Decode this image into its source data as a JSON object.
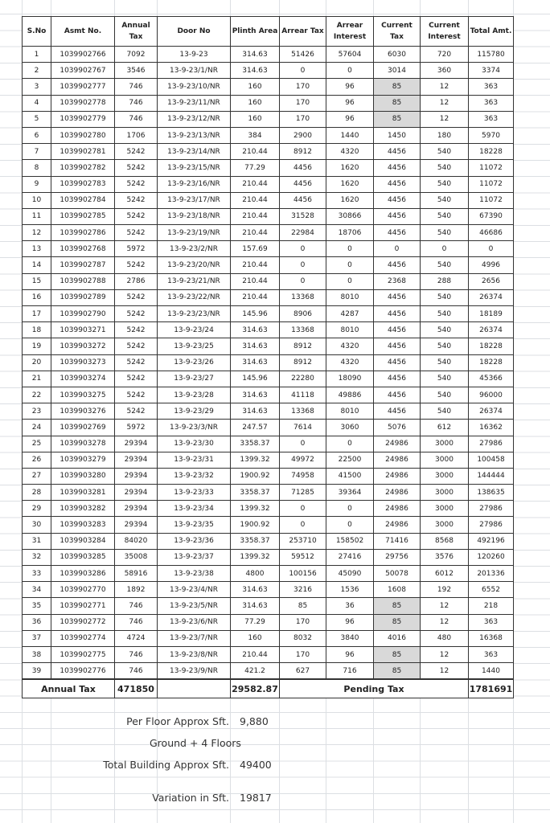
{
  "columns": [
    "S.No",
    "Asmt No.",
    "Annual Tax",
    "Door No",
    "Plinth Area",
    "Arrear Tax",
    "Arrear Interest",
    "Current Tax",
    "Current Interest",
    "Total Amt."
  ],
  "rows": [
    [
      "1",
      "1039902766",
      "7092",
      "13-9-23",
      "314.63",
      "51426",
      "57604",
      "6030",
      "720",
      "115780"
    ],
    [
      "2",
      "1039902767",
      "3546",
      "13-9-23/1/NR",
      "314.63",
      "0",
      "0",
      "3014",
      "360",
      "3374"
    ],
    [
      "3",
      "1039902777",
      "746",
      "13-9-23/10/NR",
      "160",
      "170",
      "96",
      "85",
      "12",
      "363"
    ],
    [
      "4",
      "1039902778",
      "746",
      "13-9-23/11/NR",
      "160",
      "170",
      "96",
      "85",
      "12",
      "363"
    ],
    [
      "5",
      "1039902779",
      "746",
      "13-9-23/12/NR",
      "160",
      "170",
      "96",
      "85",
      "12",
      "363"
    ],
    [
      "6",
      "1039902780",
      "1706",
      "13-9-23/13/NR",
      "384",
      "2900",
      "1440",
      "1450",
      "180",
      "5970"
    ],
    [
      "7",
      "1039902781",
      "5242",
      "13-9-23/14/NR",
      "210.44",
      "8912",
      "4320",
      "4456",
      "540",
      "18228"
    ],
    [
      "8",
      "1039902782",
      "5242",
      "13-9-23/15/NR",
      "77.29",
      "4456",
      "1620",
      "4456",
      "540",
      "11072"
    ],
    [
      "9",
      "1039902783",
      "5242",
      "13-9-23/16/NR",
      "210.44",
      "4456",
      "1620",
      "4456",
      "540",
      "11072"
    ],
    [
      "10",
      "1039902784",
      "5242",
      "13-9-23/17/NR",
      "210.44",
      "4456",
      "1620",
      "4456",
      "540",
      "11072"
    ],
    [
      "11",
      "1039902785",
      "5242",
      "13-9-23/18/NR",
      "210.44",
      "31528",
      "30866",
      "4456",
      "540",
      "67390"
    ],
    [
      "12",
      "1039902786",
      "5242",
      "13-9-23/19/NR",
      "210.44",
      "22984",
      "18706",
      "4456",
      "540",
      "46686"
    ],
    [
      "13",
      "1039902768",
      "5972",
      "13-9-23/2/NR",
      "157.69",
      "0",
      "0",
      "0",
      "0",
      "0"
    ],
    [
      "14",
      "1039902787",
      "5242",
      "13-9-23/20/NR",
      "210.44",
      "0",
      "0",
      "4456",
      "540",
      "4996"
    ],
    [
      "15",
      "1039902788",
      "2786",
      "13-9-23/21/NR",
      "210.44",
      "0",
      "0",
      "2368",
      "288",
      "2656"
    ],
    [
      "16",
      "1039902789",
      "5242",
      "13-9-23/22/NR",
      "210.44",
      "13368",
      "8010",
      "4456",
      "540",
      "26374"
    ],
    [
      "17",
      "1039902790",
      "5242",
      "13-9-23/23/NR",
      "145.96",
      "8906",
      "4287",
      "4456",
      "540",
      "18189"
    ],
    [
      "18",
      "1039903271",
      "5242",
      "13-9-23/24",
      "314.63",
      "13368",
      "8010",
      "4456",
      "540",
      "26374"
    ],
    [
      "19",
      "1039903272",
      "5242",
      "13-9-23/25",
      "314.63",
      "8912",
      "4320",
      "4456",
      "540",
      "18228"
    ],
    [
      "20",
      "1039903273",
      "5242",
      "13-9-23/26",
      "314.63",
      "8912",
      "4320",
      "4456",
      "540",
      "18228"
    ],
    [
      "21",
      "1039903274",
      "5242",
      "13-9-23/27",
      "145.96",
      "22280",
      "18090",
      "4456",
      "540",
      "45366"
    ],
    [
      "22",
      "1039903275",
      "5242",
      "13-9-23/28",
      "314.63",
      "41118",
      "49886",
      "4456",
      "540",
      "96000"
    ],
    [
      "23",
      "1039903276",
      "5242",
      "13-9-23/29",
      "314.63",
      "13368",
      "8010",
      "4456",
      "540",
      "26374"
    ],
    [
      "24",
      "1039902769",
      "5972",
      "13-9-23/3/NR",
      "247.57",
      "7614",
      "3060",
      "5076",
      "612",
      "16362"
    ],
    [
      "25",
      "1039903278",
      "29394",
      "13-9-23/30",
      "3358.37",
      "0",
      "0",
      "24986",
      "3000",
      "27986"
    ],
    [
      "26",
      "1039903279",
      "29394",
      "13-9-23/31",
      "1399.32",
      "49972",
      "22500",
      "24986",
      "3000",
      "100458"
    ],
    [
      "27",
      "1039903280",
      "29394",
      "13-9-23/32",
      "1900.92",
      "74958",
      "41500",
      "24986",
      "3000",
      "144444"
    ],
    [
      "28",
      "1039903281",
      "29394",
      "13-9-23/33",
      "3358.37",
      "71285",
      "39364",
      "24986",
      "3000",
      "138635"
    ],
    [
      "29",
      "1039903282",
      "29394",
      "13-9-23/34",
      "1399.32",
      "0",
      "0",
      "24986",
      "3000",
      "27986"
    ],
    [
      "30",
      "1039903283",
      "29394",
      "13-9-23/35",
      "1900.92",
      "0",
      "0",
      "24986",
      "3000",
      "27986"
    ],
    [
      "31",
      "1039903284",
      "84020",
      "13-9-23/36",
      "3358.37",
      "253710",
      "158502",
      "71416",
      "8568",
      "492196"
    ],
    [
      "32",
      "1039903285",
      "35008",
      "13-9-23/37",
      "1399.32",
      "59512",
      "27416",
      "29756",
      "3576",
      "120260"
    ],
    [
      "33",
      "1039903286",
      "58916",
      "13-9-23/38",
      "4800",
      "100156",
      "45090",
      "50078",
      "6012",
      "201336"
    ],
    [
      "34",
      "1039902770",
      "1892",
      "13-9-23/4/NR",
      "314.63",
      "3216",
      "1536",
      "1608",
      "192",
      "6552"
    ],
    [
      "35",
      "1039902771",
      "746",
      "13-9-23/5/NR",
      "314.63",
      "85",
      "36",
      "85",
      "12",
      "218"
    ],
    [
      "36",
      "1039902772",
      "746",
      "13-9-23/6/NR",
      "77.29",
      "170",
      "96",
      "85",
      "12",
      "363"
    ],
    [
      "37",
      "1039902774",
      "4724",
      "13-9-23/7/NR",
      "160",
      "8032",
      "3840",
      "4016",
      "480",
      "16368"
    ],
    [
      "38",
      "1039902775",
      "746",
      "13-9-23/8/NR",
      "210.44",
      "170",
      "96",
      "85",
      "12",
      "363"
    ],
    [
      "39",
      "1039902776",
      "746",
      "13-9-23/9/NR",
      "421.2",
      "627",
      "716",
      "85",
      "12",
      "1440"
    ]
  ],
  "shaded_current_tax_rows": [
    3,
    4,
    5,
    35,
    36,
    38,
    39
  ],
  "shade_color": "#d9d9d9",
  "totals": {
    "annual_tax_label": "Annual Tax",
    "annual_tax_value": "471850",
    "plinth_area_total": "29582.87",
    "pending_tax_label": "Pending Tax",
    "pending_tax_value": "1781691"
  },
  "notes": {
    "per_floor_label": "Per Floor Approx Sft.",
    "per_floor_value": "9,880",
    "floors": "Ground + 4 Floors",
    "total_building_label": "Total Building Approx Sft.",
    "total_building_value": "49400",
    "variation_label": "Variation in Sft.",
    "variation_value": "19817"
  }
}
